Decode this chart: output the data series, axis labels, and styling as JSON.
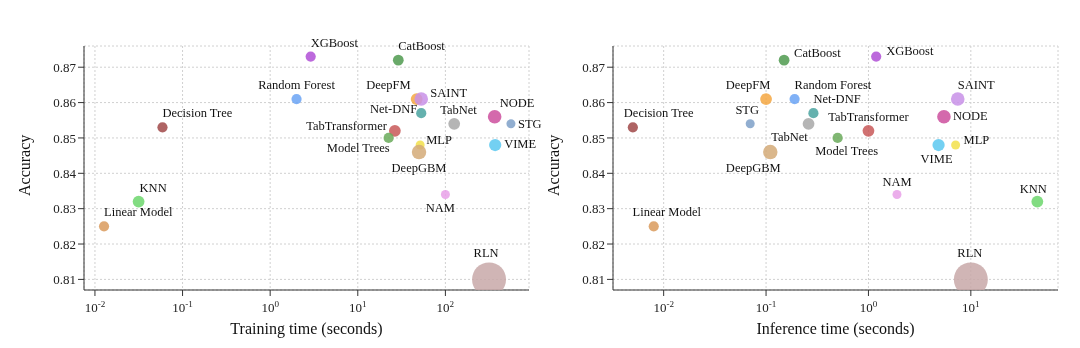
{
  "chart_data": [
    {
      "type": "bubble",
      "xlabel": "Training time (seconds)",
      "ylabel": "Accuracy",
      "log": "x",
      "grid": true,
      "legend": false,
      "marker": "circle",
      "xlim": [
        0.0075,
        900
      ],
      "ylim": [
        0.807,
        0.876
      ],
      "xticks": [
        {
          "value": 0.01,
          "label": "10$^{-2}$"
        },
        {
          "value": 0.1,
          "label": "10$^{-1}$"
        },
        {
          "value": 1,
          "label": "10$^{0}$"
        },
        {
          "value": 10,
          "label": "10$^{1}$"
        },
        {
          "value": 100,
          "label": "10$^{2}$"
        }
      ],
      "yticks": [
        0.81,
        0.82,
        0.83,
        0.84,
        0.85,
        0.86,
        0.87
      ],
      "series": [
        {
          "name": "XGBoost",
          "color": "#b04fd6",
          "x": [
            2.9
          ],
          "values": [
            0.873
          ],
          "sizes": [
            0.09
          ]
        },
        {
          "name": "CatBoost",
          "color": "#4f9a4f",
          "x": [
            29
          ],
          "values": [
            0.872
          ],
          "sizes": [
            0.1
          ]
        },
        {
          "name": "Random Forest",
          "color": "#6aa3f5",
          "x": [
            2.0
          ],
          "values": [
            0.861
          ],
          "sizes": [
            0.09
          ]
        },
        {
          "name": "DeepFM",
          "color": "#f5a742",
          "x": [
            47
          ],
          "values": [
            0.861
          ],
          "sizes": [
            0.12
          ]
        },
        {
          "name": "SAINT",
          "color": "#c890e8",
          "x": [
            53
          ],
          "values": [
            0.861
          ],
          "sizes": [
            0.16
          ]
        },
        {
          "name": "Decision Tree",
          "color": "#a04848",
          "x": [
            0.059
          ],
          "values": [
            0.853
          ],
          "sizes": [
            0.09
          ]
        },
        {
          "name": "Net-DNF",
          "color": "#4aa3a0",
          "x": [
            53
          ],
          "values": [
            0.857
          ],
          "sizes": [
            0.09
          ]
        },
        {
          "name": "TabNet",
          "color": "#a8a8a8",
          "x": [
            126
          ],
          "values": [
            0.854
          ],
          "sizes": [
            0.12
          ]
        },
        {
          "name": "NODE",
          "color": "#cc4f9e",
          "x": [
            365
          ],
          "values": [
            0.856
          ],
          "sizes": [
            0.16
          ]
        },
        {
          "name": "STG",
          "color": "#7ea0c8",
          "x": [
            560
          ],
          "values": [
            0.854
          ],
          "sizes": [
            0.07
          ]
        },
        {
          "name": "TabTransformer",
          "color": "#c85858",
          "x": [
            26.5
          ],
          "values": [
            0.852
          ],
          "sizes": [
            0.12
          ]
        },
        {
          "name": "Model Trees",
          "color": "#6aaa5a",
          "x": [
            22.5
          ],
          "values": [
            0.85
          ],
          "sizes": [
            0.09
          ]
        },
        {
          "name": "MLP",
          "color": "#f2e04a",
          "x": [
            51.5
          ],
          "values": [
            0.848
          ],
          "sizes": [
            0.07
          ]
        },
        {
          "name": "VIME",
          "color": "#5ac8f0",
          "x": [
            370
          ],
          "values": [
            0.848
          ],
          "sizes": [
            0.13
          ]
        },
        {
          "name": "DeepGBM",
          "color": "#d4aa78",
          "x": [
            50
          ],
          "values": [
            0.846
          ],
          "sizes": [
            0.18
          ]
        },
        {
          "name": "KNN",
          "color": "#6cd66c",
          "x": [
            0.0315
          ],
          "values": [
            0.832
          ],
          "sizes": [
            0.12
          ]
        },
        {
          "name": "Linear Model",
          "color": "#d99a5c",
          "x": [
            0.0127
          ],
          "values": [
            0.825
          ],
          "sizes": [
            0.09
          ]
        },
        {
          "name": "NAM",
          "color": "#e8a0e8",
          "x": [
            100
          ],
          "values": [
            0.834
          ],
          "sizes": [
            0.07
          ]
        },
        {
          "name": "RLN",
          "color": "#c8a8a8",
          "x": [
            315
          ],
          "values": [
            0.81
          ],
          "sizes": [
            1
          ]
        }
      ]
    },
    {
      "type": "bubble",
      "xlabel": "Inference time (seconds)",
      "ylabel": "Accuracy",
      "log": "x",
      "grid": true,
      "legend": false,
      "marker": "circle",
      "xlim": [
        0.0032,
        71
      ],
      "ylim": [
        0.807,
        0.876
      ],
      "xticks": [
        {
          "value": 0.01,
          "label": "10$^{-2}$"
        },
        {
          "value": 0.1,
          "label": "10$^{-1}$"
        },
        {
          "value": 1,
          "label": "10$^{0}$"
        },
        {
          "value": 10,
          "label": "10$^{1}$"
        }
      ],
      "yticks": [
        0.81,
        0.82,
        0.83,
        0.84,
        0.85,
        0.86,
        0.87
      ],
      "series": [
        {
          "name": "XGBoost",
          "color": "#b04fd6",
          "x": [
            1.19
          ],
          "values": [
            0.873
          ],
          "sizes": [
            0.09
          ]
        },
        {
          "name": "CatBoost",
          "color": "#4f9a4f",
          "x": [
            0.15
          ],
          "values": [
            0.872
          ],
          "sizes": [
            0.1
          ]
        },
        {
          "name": "Random Forest",
          "color": "#6aa3f5",
          "x": [
            0.19
          ],
          "values": [
            0.861
          ],
          "sizes": [
            0.09
          ]
        },
        {
          "name": "DeepFM",
          "color": "#f5a742",
          "x": [
            0.1
          ],
          "values": [
            0.861
          ],
          "sizes": [
            0.12
          ]
        },
        {
          "name": "SAINT",
          "color": "#c890e8",
          "x": [
            7.45
          ],
          "values": [
            0.861
          ],
          "sizes": [
            0.16
          ]
        },
        {
          "name": "Decision Tree",
          "color": "#a04848",
          "x": [
            0.005
          ],
          "values": [
            0.853
          ],
          "sizes": [
            0.09
          ]
        },
        {
          "name": "Net-DNF",
          "color": "#4aa3a0",
          "x": [
            0.29
          ],
          "values": [
            0.857
          ],
          "sizes": [
            0.09
          ]
        },
        {
          "name": "TabNet",
          "color": "#a8a8a8",
          "x": [
            0.26
          ],
          "values": [
            0.854
          ],
          "sizes": [
            0.12
          ]
        },
        {
          "name": "NODE",
          "color": "#cc4f9e",
          "x": [
            5.46
          ],
          "values": [
            0.856
          ],
          "sizes": [
            0.16
          ]
        },
        {
          "name": "STG",
          "color": "#7ea0c8",
          "x": [
            0.07
          ],
          "values": [
            0.854
          ],
          "sizes": [
            0.07
          ]
        },
        {
          "name": "TabTransformer",
          "color": "#c85858",
          "x": [
            1.0
          ],
          "values": [
            0.852
          ],
          "sizes": [
            0.12
          ]
        },
        {
          "name": "Model Trees",
          "color": "#6aaa5a",
          "x": [
            0.5
          ],
          "values": [
            0.85
          ],
          "sizes": [
            0.09
          ]
        },
        {
          "name": "MLP",
          "color": "#f2e04a",
          "x": [
            7.1
          ],
          "values": [
            0.848
          ],
          "sizes": [
            0.07
          ]
        },
        {
          "name": "VIME",
          "color": "#5ac8f0",
          "x": [
            4.84
          ],
          "values": [
            0.848
          ],
          "sizes": [
            0.13
          ]
        },
        {
          "name": "DeepGBM",
          "color": "#d4aa78",
          "x": [
            0.11
          ],
          "values": [
            0.846
          ],
          "sizes": [
            0.18
          ]
        },
        {
          "name": "KNN",
          "color": "#6cd66c",
          "x": [
            44.6
          ],
          "values": [
            0.832
          ],
          "sizes": [
            0.12
          ]
        },
        {
          "name": "Linear Model",
          "color": "#d99a5c",
          "x": [
            0.008
          ],
          "values": [
            0.825
          ],
          "sizes": [
            0.09
          ]
        },
        {
          "name": "NAM",
          "color": "#e8a0e8",
          "x": [
            1.9
          ],
          "values": [
            0.834
          ],
          "sizes": [
            0.07
          ]
        },
        {
          "name": "RLN",
          "color": "#c8a8a8",
          "x": [
            10
          ],
          "values": [
            0.81
          ],
          "sizes": [
            1
          ]
        }
      ]
    }
  ]
}
